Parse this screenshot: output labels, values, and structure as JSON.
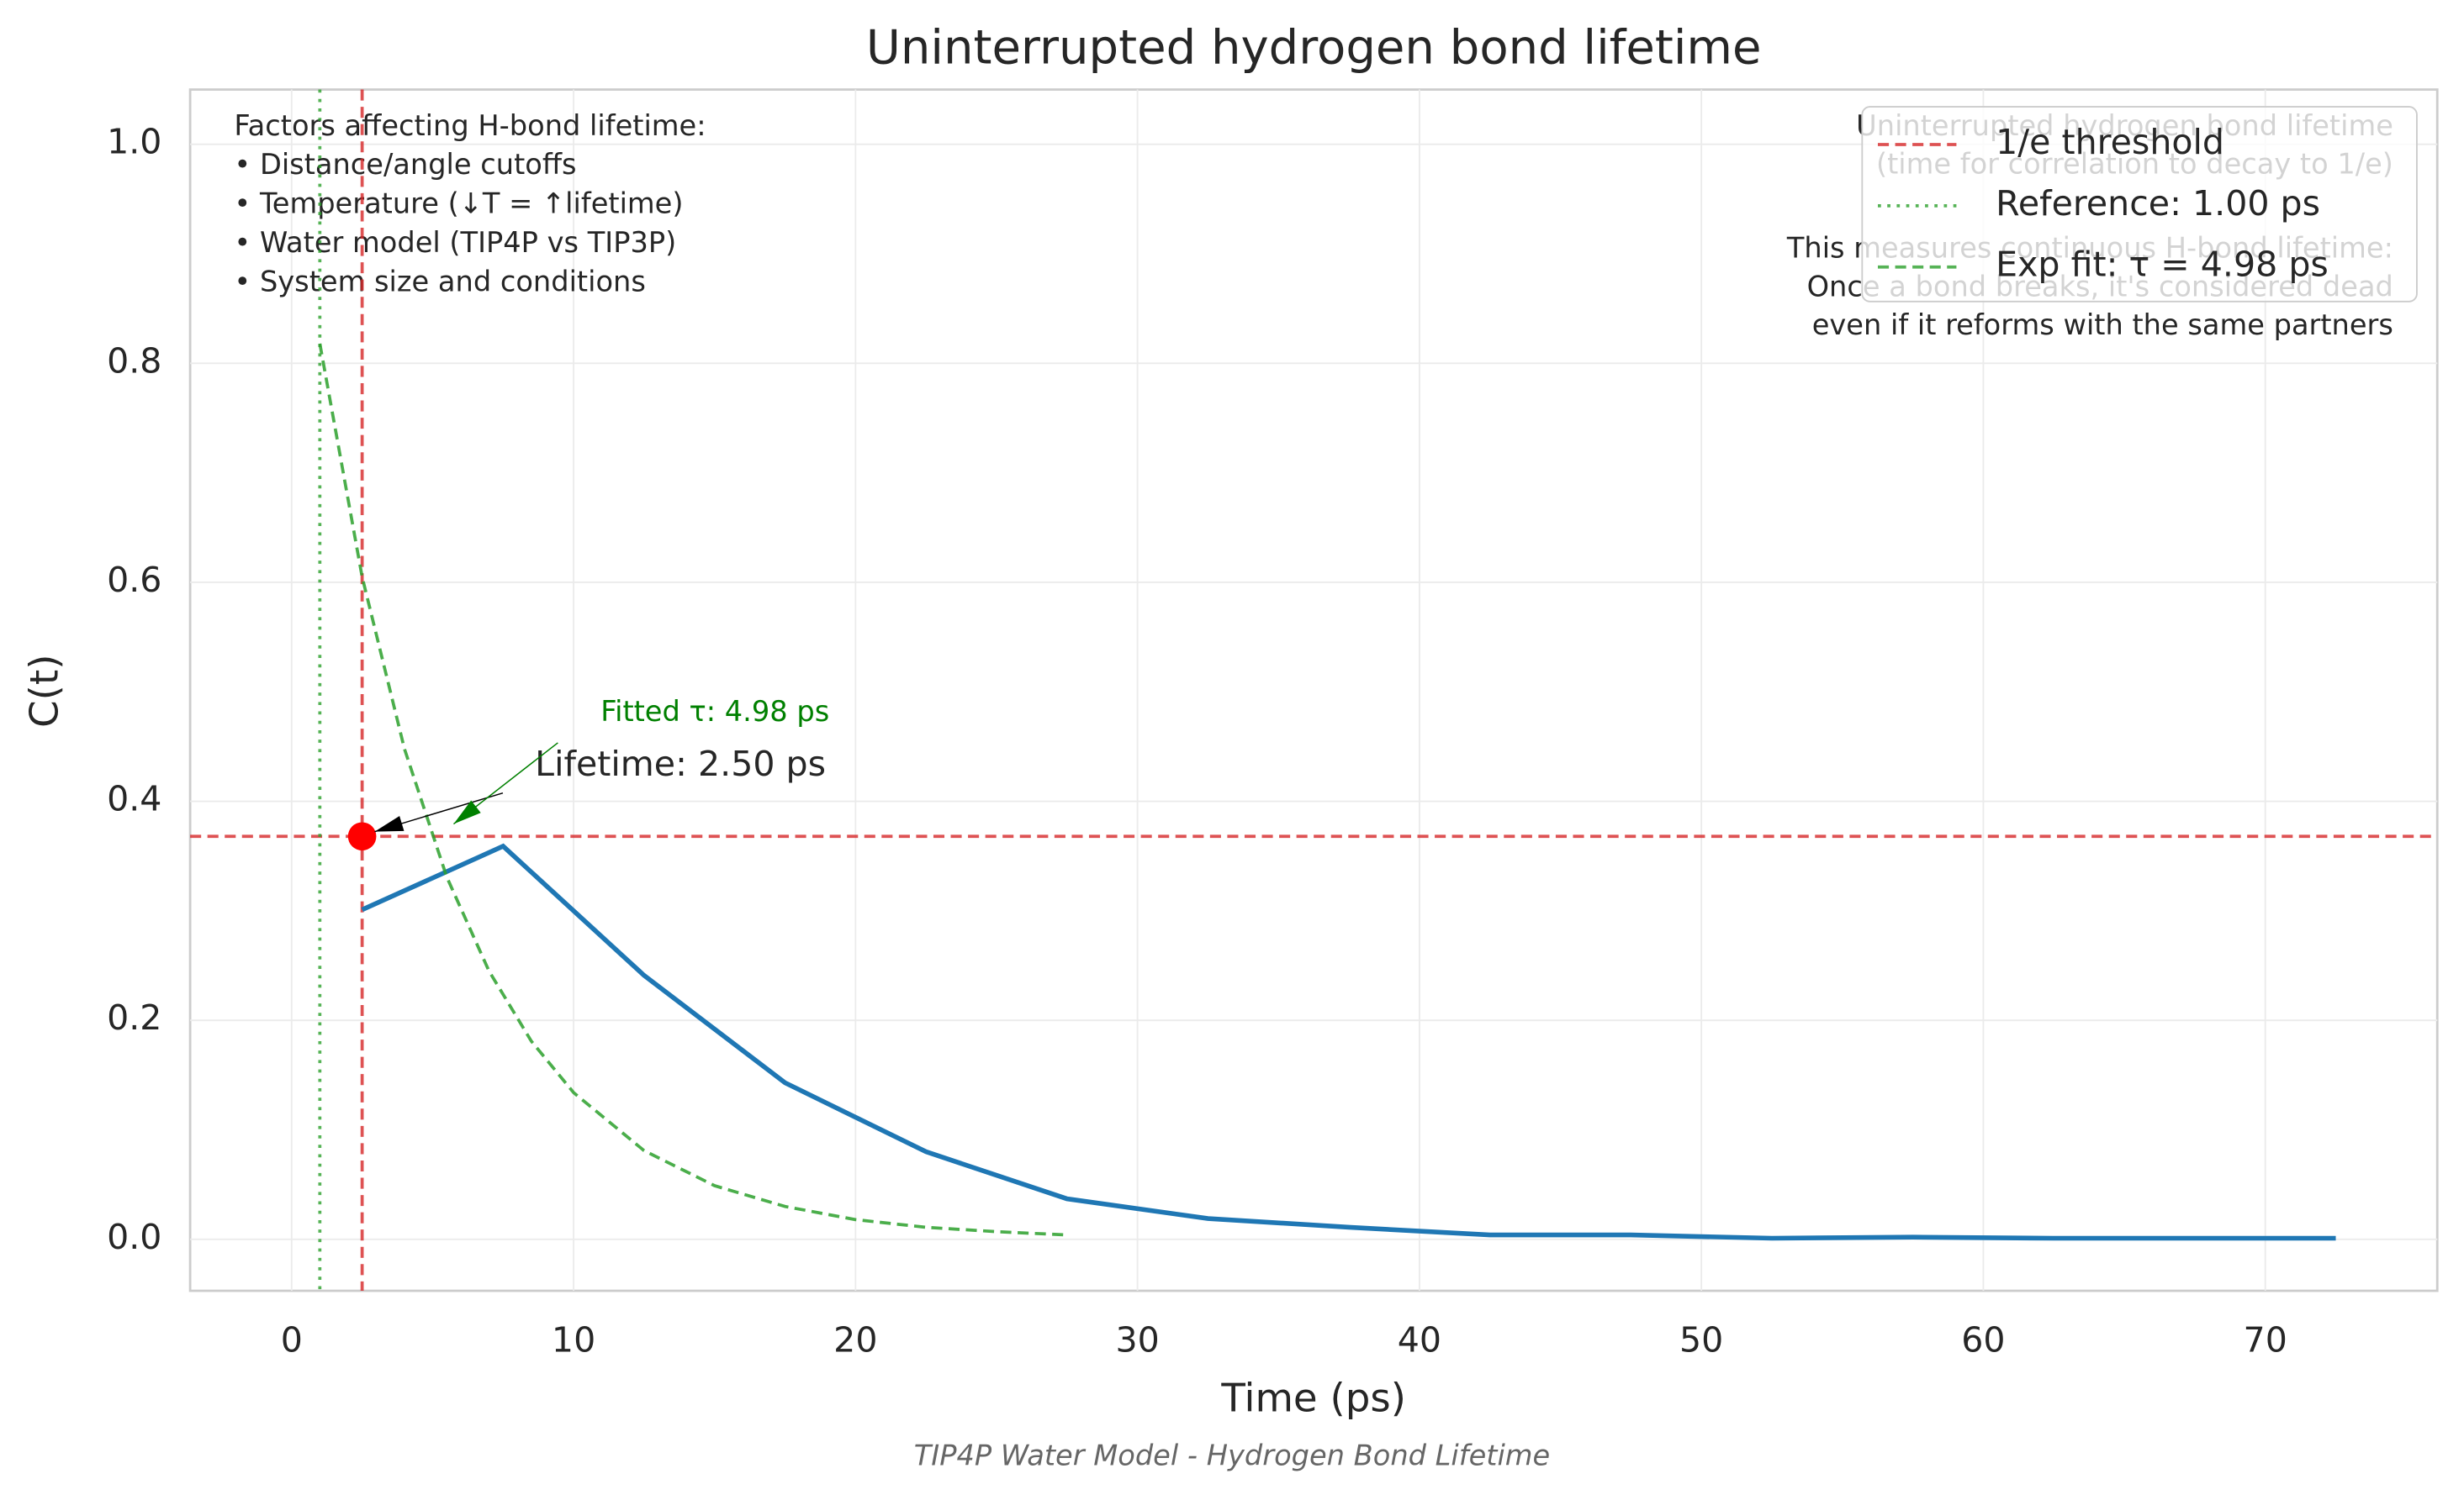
{
  "chart_data": {
    "type": "line",
    "title": "Uninterrupted hydrogen bond lifetime",
    "x_label": "Time (ps)",
    "y_label": "C(t)",
    "caption": "TIP4P Water Model - Hydrogen Bond Lifetime",
    "xlim": [
      -3.6,
      76.1
    ],
    "ylim": [
      -0.047,
      1.05
    ],
    "xticks": [
      0,
      10,
      20,
      30,
      40,
      50,
      60,
      70
    ],
    "yticks": [
      {
        "value": 0,
        "label": "0.0"
      },
      0.2,
      0.4,
      0.6,
      0.8,
      {
        "value": 1,
        "label": "1.0"
      }
    ],
    "grid": true,
    "series": [
      {
        "color": "#1f77b4",
        "style": "solid",
        "x": [
          2.5,
          7.5,
          12.5,
          17.5,
          22.5,
          27.5,
          32.5,
          37.5,
          42.5,
          47.5,
          52.5,
          57.5,
          62.5,
          67.5,
          72.5
        ],
        "values": [
          0.301,
          0.359,
          0.241,
          0.143,
          0.08,
          0.037,
          0.019,
          0.011,
          0.004,
          0.004,
          0.001,
          0.002,
          0.001,
          0.001,
          0.001
        ]
      },
      {
        "name": "Exp fit: τ = 4.98 ps",
        "color": "#2ca02c",
        "style": "dashed",
        "x": [
          1,
          2.5,
          4,
          5.5,
          7,
          8.5,
          10,
          12.5,
          15,
          17.5,
          20,
          22.5,
          25,
          27.5
        ],
        "values": [
          0.818,
          0.605,
          0.448,
          0.331,
          0.245,
          0.181,
          0.134,
          0.081,
          0.049,
          0.03,
          0.018,
          0.011,
          0.007,
          0.004
        ]
      }
    ],
    "hlines": [
      {
        "name": "1/e threshold",
        "value": 0.368,
        "color": "#d62728",
        "style": "dashed"
      }
    ],
    "vlines": [
      {
        "name": "Reference: 1.00 ps",
        "value": 1.0,
        "color": "#2ca02c",
        "style": "dotted"
      },
      {
        "value": 2.5,
        "color": "#d62728",
        "style": "dashed"
      }
    ],
    "points": [
      {
        "x": 2.5,
        "y": 0.368,
        "color": "#ff0000"
      }
    ],
    "annotations": [
      {
        "text": "Lifetime: 2.50 ps",
        "xy": [
          2.5,
          0.368
        ],
        "color": "#262626",
        "arrow_color": "#000000"
      },
      {
        "text": "Fitted τ: 4.98 ps",
        "xy": [
          5.3,
          0.375
        ],
        "color": "#008000",
        "arrow_color": "#008000"
      }
    ],
    "notes_left": [
      "Factors affecting H-bond lifetime:",
      "• Distance/angle cutoffs",
      "• Temperature (↓T = ↑lifetime)",
      "• Water model (TIP4P vs TIP3P)",
      "• System size and conditions"
    ],
    "notes_right": [
      [
        "Uninterrupted hydrogen bond lifetime",
        "(time for correlation to decay to 1/e)"
      ],
      [
        "This measures continuous H-bond lifetime:",
        "Once a bond breaks, it's considered dead",
        "even if it reforms with the same partners"
      ]
    ],
    "legend": "upper right"
  }
}
